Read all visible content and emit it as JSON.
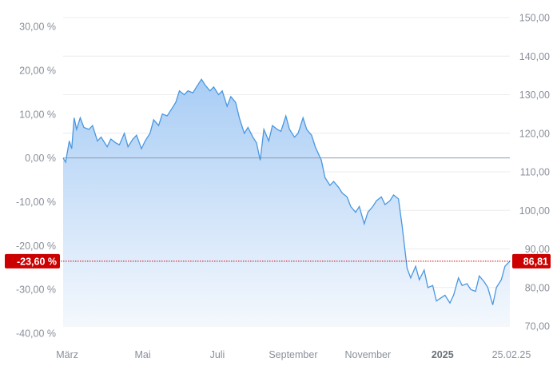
{
  "chart_data": {
    "type": "area",
    "title": "",
    "xlabel": "",
    "ylabel": "",
    "grid": true,
    "x_start": "2024-02-26",
    "x_end": "2025-02-25",
    "left_axis": {
      "unit": "%",
      "ylim": [
        -40,
        30
      ],
      "ticks": [
        "30,00 %",
        "20,00 %",
        "10,00 %",
        "0,00 %",
        "-10,00 %",
        "-20,00 %",
        "-30,00 %",
        "-40,00 %"
      ]
    },
    "right_axis": {
      "ylim": [
        70,
        150
      ],
      "ticks": [
        "150,00",
        "140,00",
        "130,00",
        "120,00",
        "110,00",
        "100,00",
        "90,00",
        "80,00",
        "70,00"
      ]
    },
    "x_ticks": [
      {
        "label": "März",
        "date": "2024-03-01",
        "bold": false
      },
      {
        "label": "Mai",
        "date": "2024-05-01",
        "bold": false
      },
      {
        "label": "Juli",
        "date": "2024-07-01",
        "bold": false
      },
      {
        "label": "September",
        "date": "2024-09-01",
        "bold": false
      },
      {
        "label": "November",
        "date": "2024-11-01",
        "bold": false
      },
      {
        "label": "2025",
        "date": "2025-01-01",
        "bold": true
      },
      {
        "label": "25.02.25",
        "date": "2025-02-25",
        "bold": false
      }
    ],
    "reference_price": 113.6,
    "current": {
      "percent_label": "-23,60 %",
      "price_label": "86,81",
      "price": 86.81
    },
    "colors": {
      "line": "#4a97e0",
      "fill_top": "#a9cdf5",
      "fill_bottom": "#f4f8fd",
      "badge": "#cc0000",
      "zero_line": "#8e9bab"
    },
    "series": [
      {
        "values": [
          [
            "2024-02-26",
            113.6
          ],
          [
            "2024-02-28",
            112.5
          ],
          [
            "2024-03-02",
            118.0
          ],
          [
            "2024-03-04",
            116.0
          ],
          [
            "2024-03-06",
            124.0
          ],
          [
            "2024-03-08",
            121.0
          ],
          [
            "2024-03-11",
            124.0
          ],
          [
            "2024-03-14",
            121.5
          ],
          [
            "2024-03-18",
            121.0
          ],
          [
            "2024-03-21",
            122.0
          ],
          [
            "2024-03-25",
            118.0
          ],
          [
            "2024-03-28",
            119.0
          ],
          [
            "2024-04-02",
            116.5
          ],
          [
            "2024-04-05",
            118.5
          ],
          [
            "2024-04-09",
            117.5
          ],
          [
            "2024-04-12",
            117.0
          ],
          [
            "2024-04-16",
            120.0
          ],
          [
            "2024-04-19",
            116.5
          ],
          [
            "2024-04-23",
            118.5
          ],
          [
            "2024-04-26",
            119.5
          ],
          [
            "2024-04-30",
            116.0
          ],
          [
            "2024-05-03",
            118.0
          ],
          [
            "2024-05-07",
            120.0
          ],
          [
            "2024-05-10",
            123.5
          ],
          [
            "2024-05-14",
            122.0
          ],
          [
            "2024-05-17",
            125.0
          ],
          [
            "2024-05-21",
            124.5
          ],
          [
            "2024-05-24",
            126.0
          ],
          [
            "2024-05-28",
            128.0
          ],
          [
            "2024-05-31",
            131.0
          ],
          [
            "2024-06-04",
            130.0
          ],
          [
            "2024-06-07",
            131.0
          ],
          [
            "2024-06-11",
            130.5
          ],
          [
            "2024-06-14",
            132.0
          ],
          [
            "2024-06-18",
            134.0
          ],
          [
            "2024-06-21",
            132.5
          ],
          [
            "2024-06-25",
            131.0
          ],
          [
            "2024-06-28",
            132.0
          ],
          [
            "2024-07-02",
            130.0
          ],
          [
            "2024-07-05",
            131.0
          ],
          [
            "2024-07-09",
            127.0
          ],
          [
            "2024-07-12",
            129.5
          ],
          [
            "2024-07-16",
            128.0
          ],
          [
            "2024-07-19",
            124.0
          ],
          [
            "2024-07-23",
            120.0
          ],
          [
            "2024-07-26",
            121.5
          ],
          [
            "2024-07-30",
            119.0
          ],
          [
            "2024-08-02",
            117.5
          ],
          [
            "2024-08-05",
            113.0
          ],
          [
            "2024-08-08",
            121.0
          ],
          [
            "2024-08-12",
            118.0
          ],
          [
            "2024-08-15",
            122.0
          ],
          [
            "2024-08-19",
            121.0
          ],
          [
            "2024-08-22",
            120.5
          ],
          [
            "2024-08-26",
            124.5
          ],
          [
            "2024-08-29",
            121.0
          ],
          [
            "2024-09-02",
            119.0
          ],
          [
            "2024-09-05",
            120.0
          ],
          [
            "2024-09-09",
            124.0
          ],
          [
            "2024-09-12",
            121.0
          ],
          [
            "2024-09-16",
            119.5
          ],
          [
            "2024-09-19",
            116.5
          ],
          [
            "2024-09-24",
            113.0
          ],
          [
            "2024-09-27",
            108.5
          ],
          [
            "2024-10-01",
            106.5
          ],
          [
            "2024-10-04",
            107.5
          ],
          [
            "2024-10-08",
            106.0
          ],
          [
            "2024-10-11",
            104.5
          ],
          [
            "2024-10-15",
            103.5
          ],
          [
            "2024-10-18",
            101.0
          ],
          [
            "2024-10-22",
            99.5
          ],
          [
            "2024-10-25",
            101.0
          ],
          [
            "2024-10-29",
            96.5
          ],
          [
            "2024-11-01",
            99.5
          ],
          [
            "2024-11-05",
            101.0
          ],
          [
            "2024-11-08",
            102.5
          ],
          [
            "2024-11-12",
            103.5
          ],
          [
            "2024-11-15",
            101.5
          ],
          [
            "2024-11-19",
            102.5
          ],
          [
            "2024-11-22",
            104.0
          ],
          [
            "2024-11-26",
            103.0
          ],
          [
            "2024-11-29",
            96.0
          ],
          [
            "2024-12-03",
            85.0
          ],
          [
            "2024-12-06",
            82.5
          ],
          [
            "2024-12-10",
            85.5
          ],
          [
            "2024-12-13",
            82.0
          ],
          [
            "2024-12-17",
            84.5
          ],
          [
            "2024-12-20",
            80.0
          ],
          [
            "2024-12-24",
            80.5
          ],
          [
            "2024-12-27",
            76.5
          ],
          [
            "2025-01-03",
            78.0
          ],
          [
            "2025-01-07",
            76.0
          ],
          [
            "2025-01-10",
            78.0
          ],
          [
            "2025-01-14",
            82.5
          ],
          [
            "2025-01-17",
            80.5
          ],
          [
            "2025-01-21",
            81.0
          ],
          [
            "2025-01-24",
            79.5
          ],
          [
            "2025-01-28",
            79.0
          ],
          [
            "2025-01-31",
            83.0
          ],
          [
            "2025-02-04",
            81.5
          ],
          [
            "2025-02-07",
            80.0
          ],
          [
            "2025-02-11",
            75.5
          ],
          [
            "2025-02-14",
            80.0
          ],
          [
            "2025-02-18",
            82.0
          ],
          [
            "2025-02-21",
            85.5
          ],
          [
            "2025-02-25",
            86.81
          ]
        ]
      }
    ]
  }
}
